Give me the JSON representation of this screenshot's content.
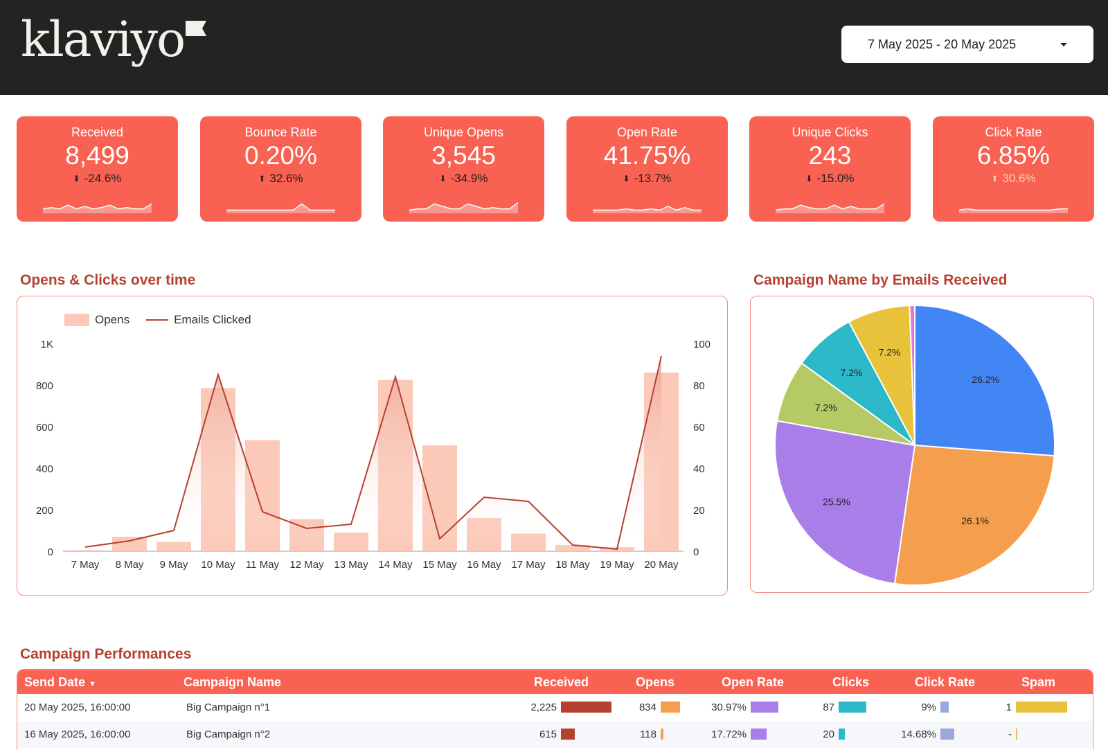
{
  "header": {
    "logo_text": "klaviyo",
    "date_range": "7 May 2025 - 20 May 2025"
  },
  "kpis": [
    {
      "label": "Received",
      "value": "8,499",
      "delta": "-24.6%",
      "direction": "down",
      "spark": [
        3,
        4,
        3,
        6,
        3,
        5,
        3,
        4,
        6,
        3,
        4,
        3,
        3,
        7
      ]
    },
    {
      "label": "Bounce Rate",
      "value": "0.20%",
      "delta": "32.6%",
      "direction": "up",
      "spark": [
        2,
        2,
        2,
        2,
        2,
        2,
        2,
        2,
        2,
        7,
        2,
        2,
        2,
        2
      ]
    },
    {
      "label": "Unique Opens",
      "value": "3,545",
      "delta": "-34.9%",
      "direction": "down",
      "spark": [
        2,
        3,
        3,
        7,
        5,
        3,
        3,
        7,
        5,
        3,
        4,
        3,
        3,
        8
      ]
    },
    {
      "label": "Open Rate",
      "value": "41.75%",
      "delta": "-13.7%",
      "direction": "down",
      "spark": [
        2,
        2,
        2,
        2,
        3,
        2,
        2,
        3,
        2,
        5,
        2,
        4,
        2,
        2
      ]
    },
    {
      "label": "Unique Clicks",
      "value": "243",
      "delta": "-15.0%",
      "direction": "down",
      "spark": [
        2,
        3,
        3,
        6,
        4,
        3,
        3,
        6,
        3,
        5,
        3,
        3,
        3,
        7
      ]
    },
    {
      "label": "Click Rate",
      "value": "6.85%",
      "delta": "30.6%",
      "direction": "up-good",
      "spark": [
        2,
        3,
        2,
        2,
        2,
        2,
        2,
        2,
        2,
        2,
        2,
        2,
        3,
        3
      ]
    }
  ],
  "opens_chart": {
    "title": "Opens & Clicks over time",
    "chart_data": {
      "type": "bar",
      "categories": [
        "7 May",
        "8 May",
        "9 May",
        "10 May",
        "11 May",
        "12 May",
        "13 May",
        "14 May",
        "15 May",
        "16 May",
        "17 May",
        "18 May",
        "19 May",
        "20 May"
      ],
      "series": [
        {
          "name": "Opens",
          "type": "bar",
          "axis": "left",
          "values": [
            5,
            70,
            45,
            785,
            535,
            155,
            90,
            825,
            510,
            160,
            85,
            30,
            20,
            860
          ]
        },
        {
          "name": "Emails Clicked",
          "type": "line",
          "axis": "right",
          "values": [
            2,
            5,
            10,
            85,
            19,
            11,
            13,
            84,
            6,
            26,
            24,
            3,
            1,
            94
          ]
        }
      ],
      "y_left_ticks": [
        "0",
        "200",
        "400",
        "600",
        "800",
        "1K"
      ],
      "y_right_ticks": [
        "0",
        "20",
        "40",
        "60",
        "80",
        "100"
      ],
      "ylim_left": [
        0,
        1000
      ],
      "ylim_right": [
        0,
        100
      ],
      "legend": "top-left"
    }
  },
  "pie_chart": {
    "title": "Campaign Name by Emails Received",
    "chart_data": {
      "type": "pie",
      "values": [
        26.2,
        26.1,
        25.5,
        7.2,
        7.2,
        7.2,
        0.6
      ],
      "labels": [
        "26.2%",
        "26.1%",
        "25.5%",
        "7.2%",
        "7.2%",
        "7.2%",
        ""
      ],
      "colors": [
        "#4285f4",
        "#f59e4e",
        "#a97ee8",
        "#b5c965",
        "#2bb9c9",
        "#e9c23b",
        "#e07ad6"
      ]
    }
  },
  "table": {
    "title": "Campaign Performances",
    "columns": {
      "send_date": "Send Date",
      "campaign_name": "Campaign Name",
      "received": "Received",
      "opens": "Opens",
      "open_rate": "Open Rate",
      "clicks": "Clicks",
      "click_rate": "Click Rate",
      "spam": "Spam"
    },
    "rows": [
      {
        "send_date": "20 May 2025, 16:00:00",
        "campaign_name": "Big Campaign n°1",
        "received": "2,225",
        "received_v": 2225,
        "opens": "834",
        "opens_v": 834,
        "open_rate": "30.97%",
        "open_rate_v": 30.97,
        "clicks": "87",
        "clicks_v": 87,
        "click_rate": "9%",
        "click_rate_v": 9,
        "spam": "1",
        "spam_v": 1
      },
      {
        "send_date": "16 May 2025, 16:00:00",
        "campaign_name": "Big Campaign n°2",
        "received": "615",
        "received_v": 615,
        "opens": "118",
        "opens_v": 118,
        "open_rate": "17.72%",
        "open_rate_v": 17.72,
        "clicks": "20",
        "clicks_v": 20,
        "click_rate": "14.68%",
        "click_rate_v": 14.68,
        "spam": "-",
        "spam_v": 0
      }
    ],
    "bar_colors": {
      "received": "#b5402f",
      "opens": "#f59e4e",
      "open_rate": "#a97ee8",
      "clicks": "#2bb9c9",
      "click_rate": "#9aa8dc",
      "spam": "#e9c23b"
    }
  }
}
